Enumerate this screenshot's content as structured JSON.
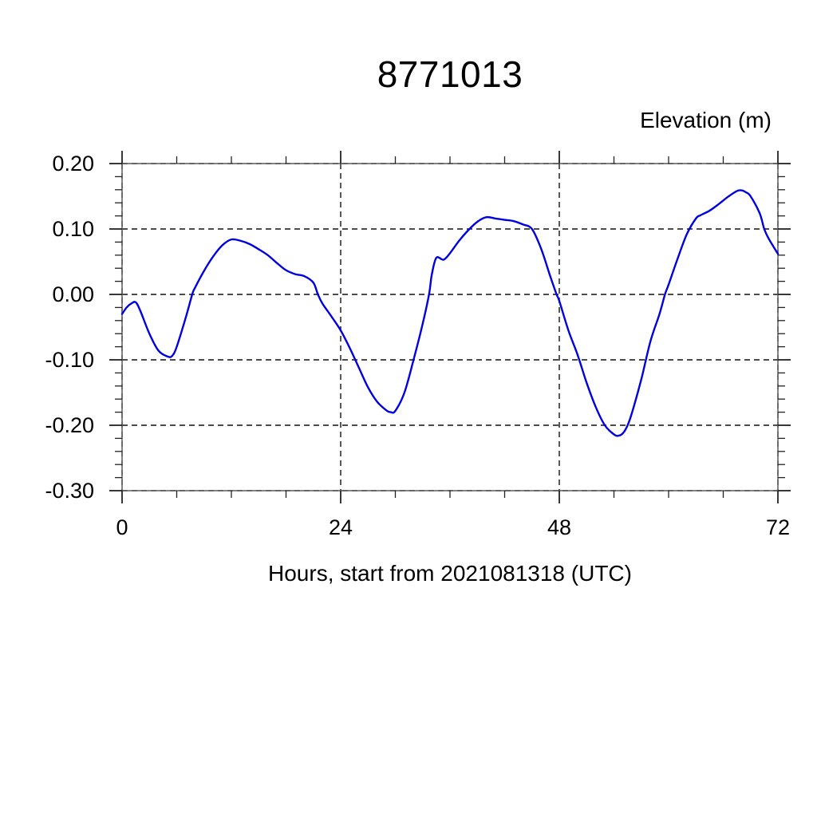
{
  "page": {
    "background": "#ffffff"
  },
  "chart_data": {
    "type": "line",
    "title": "8771013",
    "ylabel": "Elevation (m)",
    "xlabel": "Hours, start from 2021081318 (UTC)",
    "x_range": [
      0,
      72
    ],
    "y_range": [
      -0.3,
      0.2
    ],
    "x_major_ticks": [
      0,
      24,
      48,
      72
    ],
    "x_tick_labels": [
      "0",
      "24",
      "48",
      "72"
    ],
    "x_minor_step": 6,
    "y_major_ticks": [
      0.2,
      0.1,
      0.0,
      -0.1,
      -0.2,
      -0.3
    ],
    "y_tick_labels": [
      "0.20",
      "0.10",
      "0.00",
      "-0.10",
      "-0.20",
      "-0.30"
    ],
    "y_minor_step": 0.02,
    "grid": "dashed lines at major ticks, ticks outward on all four frame sides",
    "legend": "none",
    "line_color": "#0000E0",
    "frame_color": "#5a5a5a",
    "grid_color": "#111111",
    "tick_color": "#222222",
    "series": [
      {
        "name": "elevation",
        "points": [
          [
            0,
            -0.03
          ],
          [
            0.5,
            -0.02
          ],
          [
            1,
            -0.014
          ],
          [
            1.5,
            -0.012
          ],
          [
            2,
            -0.025
          ],
          [
            3,
            -0.06
          ],
          [
            4,
            -0.086
          ],
          [
            5,
            -0.095
          ],
          [
            5.5,
            -0.094
          ],
          [
            6,
            -0.08
          ],
          [
            7,
            -0.035
          ],
          [
            7.7,
            0.0
          ],
          [
            8,
            0.01
          ],
          [
            9,
            0.036
          ],
          [
            10,
            0.058
          ],
          [
            11,
            0.075
          ],
          [
            12,
            0.084
          ],
          [
            13,
            0.082
          ],
          [
            14,
            0.077
          ],
          [
            15,
            0.069
          ],
          [
            16,
            0.06
          ],
          [
            17,
            0.048
          ],
          [
            18,
            0.037
          ],
          [
            19,
            0.031
          ],
          [
            20,
            0.028
          ],
          [
            21,
            0.018
          ],
          [
            21.5,
            0.0
          ],
          [
            22,
            -0.014
          ],
          [
            23,
            -0.034
          ],
          [
            24,
            -0.055
          ],
          [
            25,
            -0.082
          ],
          [
            26,
            -0.112
          ],
          [
            27,
            -0.142
          ],
          [
            28,
            -0.164
          ],
          [
            29,
            -0.177
          ],
          [
            29.5,
            -0.18
          ],
          [
            30,
            -0.178
          ],
          [
            31,
            -0.15
          ],
          [
            32,
            -0.1
          ],
          [
            33,
            -0.045
          ],
          [
            33.7,
            0.0
          ],
          [
            34,
            0.03
          ],
          [
            34.5,
            0.056
          ],
          [
            35.3,
            0.053
          ],
          [
            36,
            0.063
          ],
          [
            37,
            0.082
          ],
          [
            38,
            0.098
          ],
          [
            39,
            0.111
          ],
          [
            40,
            0.118
          ],
          [
            41,
            0.116
          ],
          [
            42,
            0.114
          ],
          [
            43,
            0.112
          ],
          [
            44,
            0.107
          ],
          [
            45,
            0.1
          ],
          [
            46,
            0.07
          ],
          [
            47,
            0.028
          ],
          [
            47.7,
            0.0
          ],
          [
            48,
            -0.01
          ],
          [
            49,
            -0.055
          ],
          [
            50,
            -0.092
          ],
          [
            51,
            -0.135
          ],
          [
            52,
            -0.172
          ],
          [
            53,
            -0.2
          ],
          [
            54,
            -0.214
          ],
          [
            54.5,
            -0.216
          ],
          [
            55,
            -0.212
          ],
          [
            55.5,
            -0.2
          ],
          [
            56,
            -0.18
          ],
          [
            57,
            -0.13
          ],
          [
            58,
            -0.072
          ],
          [
            59,
            -0.03
          ],
          [
            59.6,
            0.0
          ],
          [
            60,
            0.015
          ],
          [
            61,
            0.055
          ],
          [
            62,
            0.092
          ],
          [
            63,
            0.116
          ],
          [
            63.5,
            0.121
          ],
          [
            64.5,
            0.128
          ],
          [
            65.5,
            0.138
          ],
          [
            66.5,
            0.149
          ],
          [
            67.5,
            0.158
          ],
          [
            68,
            0.159
          ],
          [
            68.5,
            0.156
          ],
          [
            69,
            0.15
          ],
          [
            70,
            0.124
          ],
          [
            70.5,
            0.1
          ],
          [
            71,
            0.085
          ],
          [
            72,
            0.062
          ]
        ]
      }
    ]
  }
}
